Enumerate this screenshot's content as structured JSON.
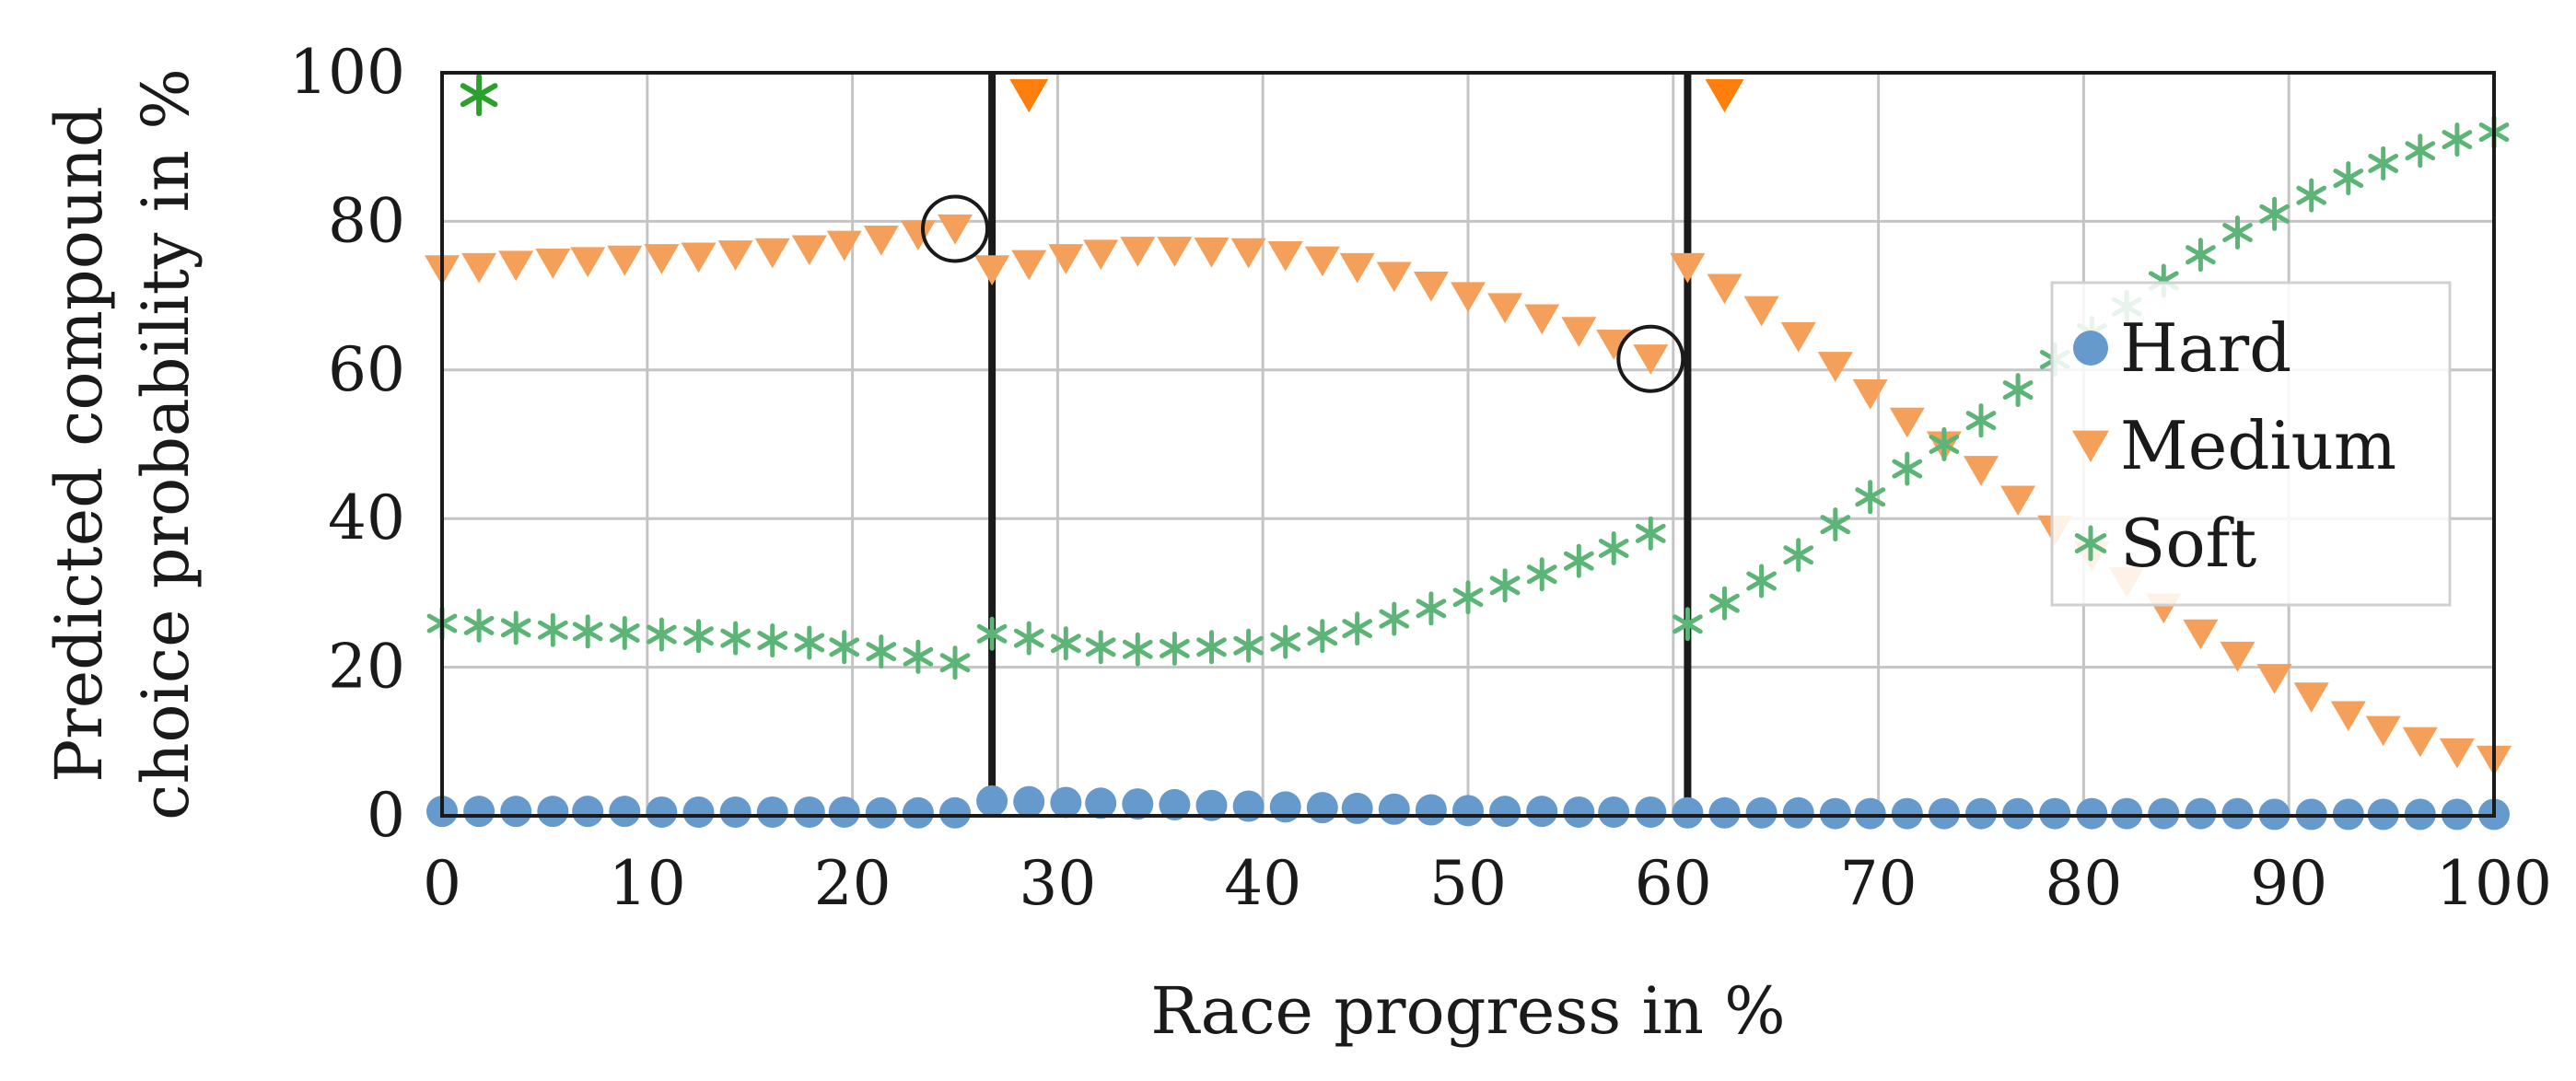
{
  "chart_data": {
    "type": "scatter",
    "title": "",
    "xlabel": "Race progress in %",
    "ylabel_lines": [
      "Predicted compound",
      "choice probability in %"
    ],
    "xlim": [
      0,
      100
    ],
    "ylim": [
      0,
      100
    ],
    "xticks": [
      0,
      10,
      20,
      30,
      40,
      50,
      60,
      70,
      80,
      90,
      100
    ],
    "yticks": [
      0,
      20,
      40,
      60,
      80,
      100
    ],
    "grid": true,
    "legend_position": "right",
    "x": [
      0,
      1.8,
      3.6,
      5.4,
      7.1,
      8.9,
      10.7,
      12.5,
      14.3,
      16.1,
      17.9,
      19.6,
      21.4,
      23.2,
      25.0,
      26.8,
      28.6,
      30.4,
      32.1,
      33.9,
      35.7,
      37.5,
      39.3,
      41.1,
      42.9,
      44.6,
      46.4,
      48.2,
      50.0,
      51.8,
      53.6,
      55.4,
      57.1,
      58.9,
      60.7,
      62.5,
      64.3,
      66.1,
      67.9,
      69.6,
      71.4,
      73.2,
      75.0,
      76.8,
      78.6,
      80.4,
      82.1,
      83.9,
      85.7,
      87.5,
      89.3,
      91.1,
      92.9,
      94.6,
      96.4,
      98.2,
      100
    ],
    "series": [
      {
        "name": "Hard",
        "marker": "circle",
        "color": "#6699cc",
        "values": [
          0.6,
          0.6,
          0.6,
          0.6,
          0.6,
          0.6,
          0.5,
          0.5,
          0.5,
          0.5,
          0.5,
          0.5,
          0.4,
          0.4,
          0.4,
          2.0,
          1.9,
          1.8,
          1.7,
          1.6,
          1.5,
          1.4,
          1.3,
          1.2,
          1.1,
          1.0,
          0.9,
          0.8,
          0.7,
          0.6,
          0.6,
          0.5,
          0.5,
          0.5,
          0.4,
          0.4,
          0.4,
          0.4,
          0.3,
          0.3,
          0.3,
          0.3,
          0.3,
          0.3,
          0.3,
          0.3,
          0.3,
          0.3,
          0.3,
          0.3,
          0.2,
          0.2,
          0.2,
          0.2,
          0.2,
          0.2,
          0.2
        ]
      },
      {
        "name": "Medium",
        "marker": "triangle-down",
        "color": "#f5a05a",
        "values": [
          73.5,
          73.8,
          74.1,
          74.4,
          74.6,
          74.8,
          75.0,
          75.2,
          75.5,
          75.8,
          76.2,
          76.8,
          77.5,
          78.2,
          79.0,
          73.5,
          74.2,
          75.0,
          75.6,
          76.0,
          76.0,
          75.9,
          75.8,
          75.4,
          74.7,
          73.8,
          72.6,
          71.3,
          69.9,
          68.4,
          66.9,
          65.2,
          63.5,
          61.5,
          73.8,
          71.0,
          68.0,
          64.5,
          60.5,
          56.8,
          53.0,
          49.8,
          46.5,
          42.5,
          38.5,
          35.0,
          31.5,
          28.0,
          24.5,
          21.5,
          18.5,
          16.0,
          13.5,
          11.5,
          10.0,
          8.5,
          7.5
        ]
      },
      {
        "name": "Soft",
        "marker": "asterisk",
        "color": "#5cb577",
        "values": [
          25.9,
          25.6,
          25.3,
          25.0,
          24.8,
          24.6,
          24.4,
          24.2,
          23.9,
          23.6,
          23.3,
          22.7,
          22.1,
          21.4,
          20.6,
          24.5,
          23.9,
          23.2,
          22.7,
          22.4,
          22.5,
          22.7,
          22.9,
          23.4,
          24.2,
          25.2,
          26.5,
          27.9,
          29.4,
          31.0,
          32.5,
          34.3,
          36.0,
          38.0,
          25.8,
          28.6,
          31.6,
          35.1,
          39.2,
          42.9,
          46.7,
          50.0,
          53.2,
          57.3,
          61.4,
          65.0,
          68.5,
          72.0,
          75.5,
          78.5,
          81.0,
          83.5,
          85.8,
          87.8,
          89.5,
          91.0,
          92.0
        ]
      }
    ],
    "pit_stops": [
      26.8,
      60.7
    ],
    "annotations": [
      {
        "kind": "actual-choice",
        "compound": "Soft",
        "x": 1.8,
        "y": 97
      },
      {
        "kind": "actual-choice",
        "compound": "Medium",
        "x": 28.6,
        "y": 97
      },
      {
        "kind": "actual-choice",
        "compound": "Medium",
        "x": 62.5,
        "y": 97
      },
      {
        "kind": "circle-highlight",
        "x": 25.0,
        "y": 79.0
      },
      {
        "kind": "circle-highlight",
        "x": 58.9,
        "y": 61.5
      }
    ],
    "colors": {
      "grid": "#c4c4c4",
      "axis": "#1a1a1a",
      "actual_soft": "#2ca02c",
      "actual_medium": "#ff7f0e"
    }
  }
}
